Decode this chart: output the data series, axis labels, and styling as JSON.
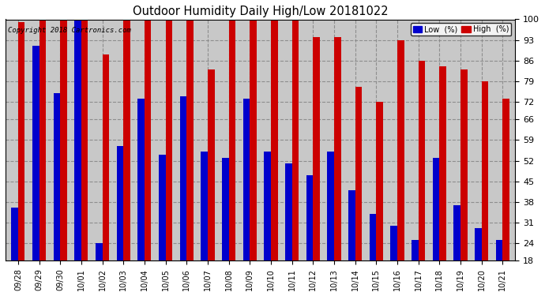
{
  "title": "Outdoor Humidity Daily High/Low 20181022",
  "copyright": "Copyright 2018 Cartronics.com",
  "legend_low": "Low  (%)",
  "legend_high": "High  (%)",
  "color_low": "#0000cc",
  "color_high": "#cc0000",
  "plot_bg_color": "#c8c8c8",
  "fig_bg_color": "#ffffff",
  "ylim": [
    18,
    100
  ],
  "yticks": [
    18,
    24,
    31,
    38,
    45,
    52,
    59,
    66,
    72,
    79,
    86,
    93,
    100
  ],
  "categories": [
    "09/28",
    "09/29",
    "09/30",
    "10/01",
    "10/02",
    "10/03",
    "10/04",
    "10/05",
    "10/06",
    "10/07",
    "10/08",
    "10/09",
    "10/10",
    "10/11",
    "10/12",
    "10/13",
    "10/14",
    "10/15",
    "10/16",
    "10/17",
    "10/18",
    "10/19",
    "10/20",
    "10/21"
  ],
  "high": [
    99,
    100,
    100,
    100,
    88,
    100,
    100,
    100,
    100,
    83,
    100,
    100,
    100,
    100,
    94,
    94,
    77,
    72,
    93,
    86,
    84,
    83,
    79,
    73
  ],
  "low": [
    36,
    91,
    75,
    100,
    24,
    57,
    73,
    54,
    74,
    55,
    53,
    73,
    55,
    51,
    47,
    55,
    42,
    34,
    30,
    25,
    53,
    37,
    29,
    25
  ]
}
